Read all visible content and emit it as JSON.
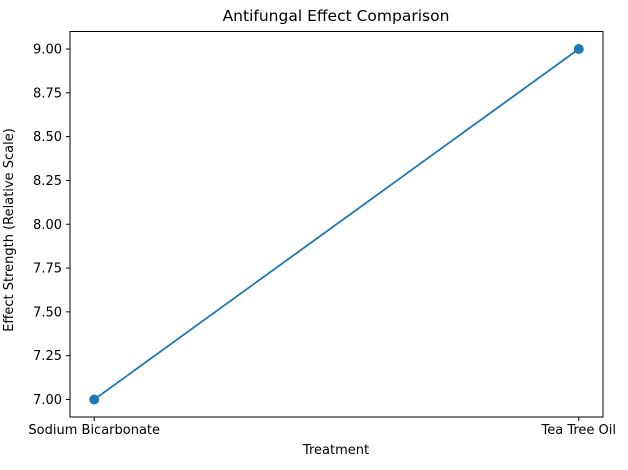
{
  "chart_data": {
    "type": "line",
    "title": "Antifungal Effect Comparison",
    "xlabel": "Treatment",
    "ylabel": "Effect Strength (Relative Scale)",
    "categories": [
      "Sodium Bicarbonate",
      "Tea Tree Oil"
    ],
    "values": [
      7.0,
      9.0
    ],
    "ylim": [
      6.9,
      9.1
    ],
    "yticks": [
      7.0,
      7.25,
      7.5,
      7.75,
      8.0,
      8.25,
      8.5,
      8.75,
      9.0
    ],
    "ytick_labels": [
      "7.00",
      "7.25",
      "7.50",
      "7.75",
      "8.00",
      "8.25",
      "8.50",
      "8.75",
      "9.00"
    ],
    "line_color": "#1f77b4",
    "marker": "circle",
    "marker_color": "#1f77b4",
    "spine_color": "#000000",
    "grid": false,
    "legend_position": "none"
  }
}
